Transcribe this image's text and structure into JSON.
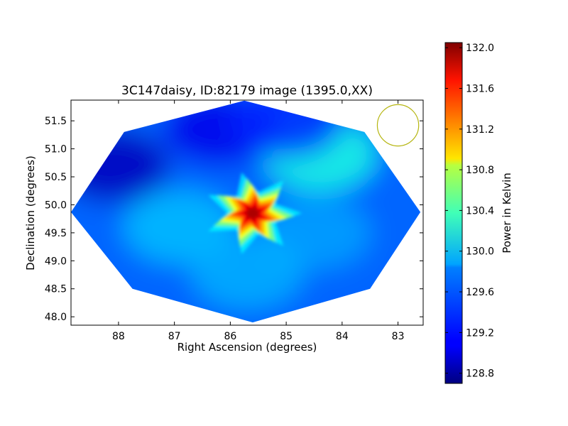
{
  "chart_data": {
    "type": "heatmap",
    "title": "3C147daisy, ID:82179 image (1395.0,XX)",
    "xlabel": "Right Ascension (degrees)",
    "ylabel": "Declination (degrees)",
    "xlim": [
      88.85,
      82.55
    ],
    "ylim": [
      47.85,
      51.87
    ],
    "x_ticks": [
      88,
      87,
      86,
      85,
      84,
      83
    ],
    "x_tick_labels": [
      "88",
      "87",
      "86",
      "85",
      "84",
      "83"
    ],
    "y_ticks": [
      48.0,
      48.5,
      49.0,
      49.5,
      50.0,
      50.5,
      51.0,
      51.5
    ],
    "y_tick_labels": [
      "48.0",
      "48.5",
      "49.0",
      "49.5",
      "50.0",
      "50.5",
      "51.0",
      "51.5"
    ],
    "colorbar": {
      "label": "Power in Kelvin",
      "range": [
        128.7,
        132.05
      ],
      "colormap": "jet",
      "ticks": [
        128.8,
        129.2,
        129.6,
        130.0,
        130.4,
        130.8,
        131.2,
        131.6,
        132.0
      ],
      "tick_labels": [
        "128.8",
        "129.2",
        "129.6",
        "130.0",
        "130.4",
        "130.8",
        "131.2",
        "131.6",
        "132.0"
      ]
    },
    "coverage_polygon": [
      [
        88.85,
        49.87
      ],
      [
        87.9,
        51.3
      ],
      [
        85.75,
        51.86
      ],
      [
        83.6,
        51.3
      ],
      [
        82.6,
        49.87
      ],
      [
        83.5,
        48.5
      ],
      [
        85.6,
        47.9
      ],
      [
        87.75,
        48.5
      ]
    ],
    "source_peak": {
      "ra": 85.6,
      "dec": 49.85,
      "value": 132.0
    },
    "features": [
      {
        "ra": 84.4,
        "dec": 50.9,
        "value": 130.05
      },
      {
        "ra": 88.1,
        "dec": 50.7,
        "value": 128.9
      },
      {
        "ra": 86.2,
        "dec": 51.35,
        "value": 129.05
      },
      {
        "ra": 85.0,
        "dec": 51.5,
        "value": 129.25
      },
      {
        "ra": 86.9,
        "dec": 49.6,
        "value": 129.75
      },
      {
        "ra": 84.5,
        "dec": 49.5,
        "value": 129.65
      },
      {
        "ra": 85.7,
        "dec": 48.8,
        "value": 129.7
      }
    ],
    "background_value": 129.45,
    "beam": {
      "ra": 83.0,
      "dec": 51.42,
      "radius_deg": 0.37,
      "color": "#b5b510"
    },
    "colors": {
      "beam": "#b5b510",
      "axis": "#000000"
    }
  }
}
